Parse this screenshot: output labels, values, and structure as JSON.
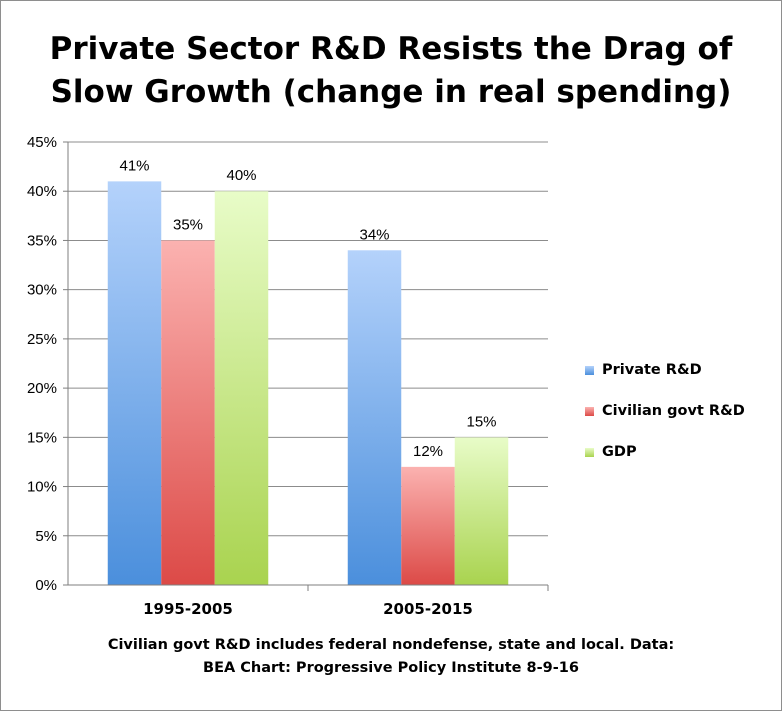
{
  "title_lines": [
    "Private Sector R&D Resists the Drag of",
    "Slow Growth (change in real spending)"
  ],
  "footnote_lines": [
    "Civilian govt R&D includes federal nondefense, state and local. Data:",
    "BEA  Chart: Progressive Policy Institute 8-9-16"
  ],
  "colors": {
    "private_top": "#b4d2fb",
    "private_bottom": "#4b8fdc",
    "civilian_top": "#fbb2b0",
    "civilian_bottom": "#dc4a47",
    "gdp_top": "#e8fcc8",
    "gdp_bottom": "#a9d34f",
    "grid": "#8c8c8c",
    "axis": "#7f7f7f"
  },
  "chart_data": {
    "type": "bar",
    "title": "Private Sector R&D Resists the Drag of Slow Growth (change in real spending)",
    "categories": [
      "1995-2005",
      "2005-2015"
    ],
    "series": [
      {
        "name": "Private R&D",
        "values": [
          41,
          34
        ],
        "labels": [
          "41%",
          "34%"
        ]
      },
      {
        "name": "Civilian govt R&D",
        "values": [
          35,
          12
        ],
        "labels": [
          "35%",
          "12%"
        ]
      },
      {
        "name": "GDP",
        "values": [
          40,
          15
        ],
        "labels": [
          "40%",
          "15%"
        ]
      }
    ],
    "ylim": [
      0,
      45
    ],
    "yticks": [
      "0%",
      "5%",
      "10%",
      "15%",
      "20%",
      "25%",
      "30%",
      "35%",
      "40%",
      "45%"
    ],
    "grid": true,
    "legend": "right"
  }
}
